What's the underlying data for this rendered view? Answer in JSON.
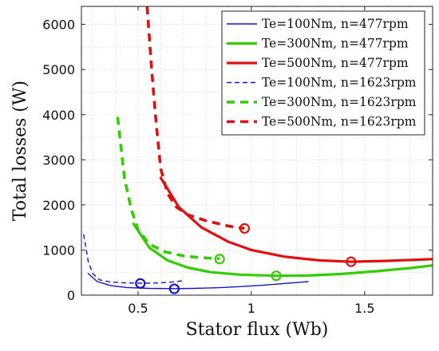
{
  "chart_data": {
    "type": "line",
    "title": "",
    "xlabel": "Stator flux (Wb)",
    "ylabel": "Total losses (W)",
    "xlim": [
      0.25,
      1.8
    ],
    "ylim": [
      0,
      6400
    ],
    "xticks": [
      0.5,
      1,
      1.5
    ],
    "xtick_labels": [
      "0.5",
      "1",
      "1.5"
    ],
    "yticks": [
      0,
      1000,
      2000,
      3000,
      4000,
      5000,
      6000
    ],
    "ytick_labels": [
      "0",
      "1000",
      "2000",
      "3000",
      "4000",
      "5000",
      "6000"
    ],
    "grid": true,
    "legend_position": "top-right",
    "series": [
      {
        "name": "Te=100Nm, n=477rpm",
        "color": "#1414c8",
        "style": "solid",
        "x": [
          0.28,
          0.32,
          0.38,
          0.45,
          0.55,
          0.66,
          0.75,
          0.85,
          0.95,
          1.05,
          1.15,
          1.25
        ],
        "y": [
          480,
          300,
          210,
          170,
          150,
          145,
          150,
          165,
          190,
          220,
          260,
          300
        ],
        "marker": {
          "x": 0.66,
          "y": 140
        }
      },
      {
        "name": "Te=300Nm, n=477rpm",
        "color": "#33cc00",
        "style": "solid",
        "x": [
          0.48,
          0.55,
          0.63,
          0.72,
          0.82,
          0.95,
          1.11,
          1.25,
          1.4,
          1.55,
          1.7,
          1.8
        ],
        "y": [
          1580,
          1050,
          770,
          610,
          510,
          455,
          430,
          435,
          470,
          530,
          600,
          660
        ],
        "marker": {
          "x": 1.11,
          "y": 430
        }
      },
      {
        "name": "Te=500Nm, n=477rpm",
        "color": "#e01010",
        "style": "solid",
        "x": [
          0.6,
          0.68,
          0.78,
          0.9,
          1.0,
          1.15,
          1.3,
          1.44,
          1.6,
          1.8
        ],
        "y": [
          2600,
          1950,
          1500,
          1180,
          1000,
          850,
          770,
          740,
          760,
          800
        ],
        "marker": {
          "x": 1.44,
          "y": 740
        }
      },
      {
        "name": "Te=100Nm, n=1623rpm",
        "color": "#1414c8",
        "style": "dashed",
        "x": [
          0.26,
          0.28,
          0.3,
          0.33,
          0.38,
          0.45,
          0.51,
          0.58,
          0.65,
          0.7
        ],
        "y": [
          1350,
          750,
          480,
          340,
          290,
          270,
          265,
          268,
          290,
          320
        ],
        "marker": {
          "x": 0.51,
          "y": 260
        }
      },
      {
        "name": "Te=300Nm, n=1623rpm",
        "color": "#33cc00",
        "style": "dashed",
        "x": [
          0.41,
          0.44,
          0.47,
          0.5,
          0.55,
          0.62,
          0.7,
          0.78,
          0.86
        ],
        "y": [
          3950,
          2600,
          1900,
          1450,
          1130,
          960,
          870,
          830,
          810
        ],
        "marker": {
          "x": 0.86,
          "y": 800
        }
      },
      {
        "name": "Te=500Nm, n=1623rpm",
        "color": "#e01010",
        "style": "dashed",
        "x": [
          0.54,
          0.56,
          0.58,
          0.6,
          0.63,
          0.67,
          0.72,
          0.8,
          0.9,
          0.97
        ],
        "y": [
          6400,
          5000,
          3800,
          2800,
          2250,
          1950,
          1780,
          1650,
          1530,
          1480
        ],
        "marker": {
          "x": 0.97,
          "y": 1480
        }
      }
    ]
  }
}
